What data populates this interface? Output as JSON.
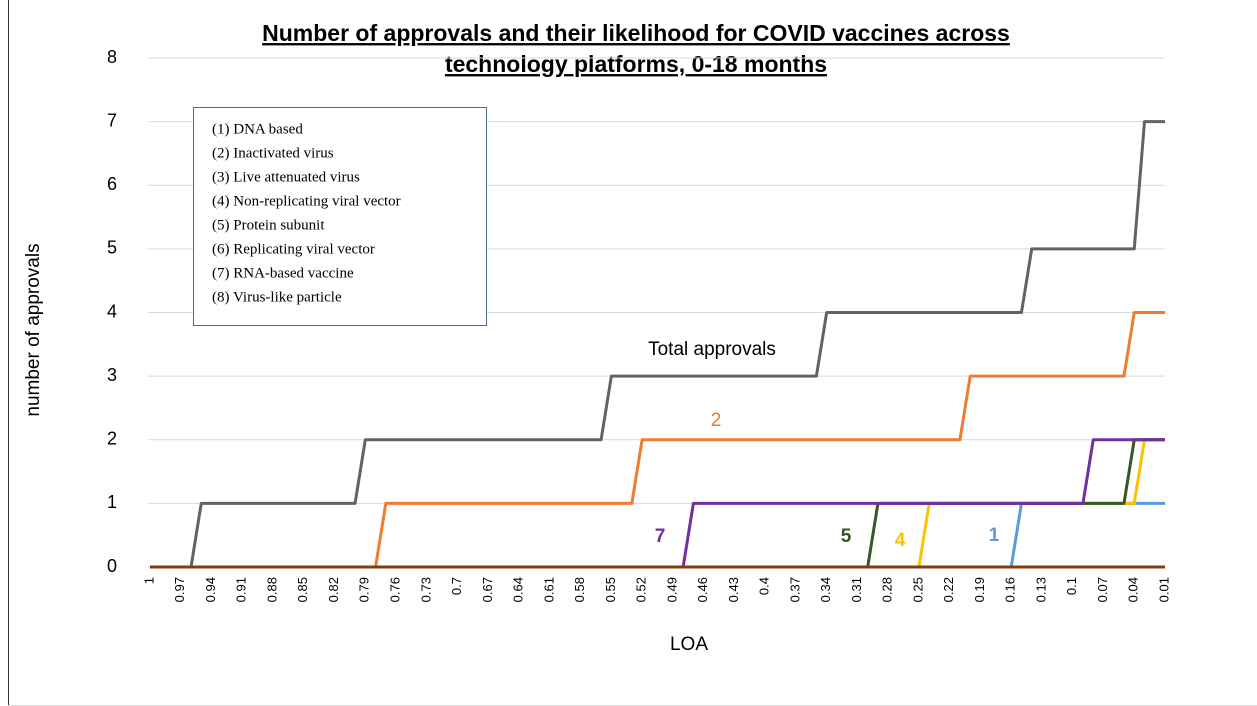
{
  "chart_data": {
    "type": "line",
    "title": [
      "Number of approvals and their likelihood for COVID vaccines across",
      "technology platforms, 0-18 months"
    ],
    "x_label": "LOA",
    "y_label": "number of approvals",
    "legend_notes": [
      "(1) DNA based",
      "(2) Inactivated virus",
      "(3) Live attenuated virus",
      "(4) Non-replicating viral vector",
      "(5) Protein subunit",
      "(6) Replicating viral vector",
      "(7) RNA-based vaccine",
      "(8) Virus-like particle"
    ],
    "ylim": [
      0,
      8
    ],
    "yticks": [
      0,
      1,
      2,
      3,
      4,
      5,
      6,
      7,
      8
    ],
    "grid": true,
    "categories": [
      "1",
      null,
      null,
      "0.97",
      null,
      null,
      "0.94",
      null,
      null,
      "0.91",
      null,
      null,
      "0.88",
      null,
      null,
      "0.85",
      null,
      null,
      "0.82",
      null,
      null,
      "0.79",
      null,
      null,
      "0.76",
      null,
      null,
      "0.73",
      null,
      null,
      "0.7",
      null,
      null,
      "0.67",
      null,
      null,
      "0.64",
      null,
      null,
      "0.61",
      null,
      null,
      "0.58",
      null,
      null,
      "0.55",
      null,
      null,
      "0.52",
      null,
      null,
      "0.49",
      null,
      null,
      "0.46",
      null,
      null,
      "0.43",
      null,
      null,
      "0.4",
      null,
      null,
      "0.37",
      null,
      null,
      "0.34",
      null,
      null,
      "0.31",
      null,
      null,
      "0.28",
      null,
      null,
      "0.25",
      null,
      null,
      "0.22",
      null,
      null,
      "0.19",
      null,
      null,
      "0.16",
      null,
      null,
      "0.13",
      null,
      null,
      "0.1",
      null,
      null,
      "0.07",
      null,
      null,
      "0.04",
      null,
      null,
      "0.01"
    ],
    "series": [
      {
        "name": "1",
        "color": "#5b9bd5",
        "values": [
          0,
          0,
          0,
          0,
          0,
          0,
          0,
          0,
          0,
          0,
          0,
          0,
          0,
          0,
          0,
          0,
          0,
          0,
          0,
          0,
          0,
          0,
          0,
          0,
          0,
          0,
          0,
          0,
          0,
          0,
          0,
          0,
          0,
          0,
          0,
          0,
          0,
          0,
          0,
          0,
          0,
          0,
          0,
          0,
          0,
          0,
          0,
          0,
          0,
          0,
          0,
          0,
          0,
          0,
          0,
          0,
          0,
          0,
          0,
          0,
          0,
          0,
          0,
          0,
          0,
          0,
          0,
          0,
          0,
          0,
          0,
          0,
          0,
          0,
          0,
          0,
          0,
          0,
          0,
          0,
          0,
          0,
          0,
          0,
          0,
          1,
          1,
          1,
          1,
          1,
          1,
          1,
          1,
          1,
          1,
          1,
          1,
          1,
          1,
          1
        ]
      },
      {
        "name": "4",
        "color": "#ffc000",
        "values": [
          0,
          0,
          0,
          0,
          0,
          0,
          0,
          0,
          0,
          0,
          0,
          0,
          0,
          0,
          0,
          0,
          0,
          0,
          0,
          0,
          0,
          0,
          0,
          0,
          0,
          0,
          0,
          0,
          0,
          0,
          0,
          0,
          0,
          0,
          0,
          0,
          0,
          0,
          0,
          0,
          0,
          0,
          0,
          0,
          0,
          0,
          0,
          0,
          0,
          0,
          0,
          0,
          0,
          0,
          0,
          0,
          0,
          0,
          0,
          0,
          0,
          0,
          0,
          0,
          0,
          0,
          0,
          0,
          0,
          0,
          0,
          0,
          0,
          0,
          0,
          0,
          1,
          1,
          1,
          1,
          1,
          1,
          1,
          1,
          1,
          1,
          1,
          1,
          1,
          1,
          1,
          1,
          1,
          1,
          1,
          1,
          1,
          2,
          2,
          2
        ]
      },
      {
        "name": "5",
        "color": "#375623",
        "values": [
          0,
          0,
          0,
          0,
          0,
          0,
          0,
          0,
          0,
          0,
          0,
          0,
          0,
          0,
          0,
          0,
          0,
          0,
          0,
          0,
          0,
          0,
          0,
          0,
          0,
          0,
          0,
          0,
          0,
          0,
          0,
          0,
          0,
          0,
          0,
          0,
          0,
          0,
          0,
          0,
          0,
          0,
          0,
          0,
          0,
          0,
          0,
          0,
          0,
          0,
          0,
          0,
          0,
          0,
          0,
          0,
          0,
          0,
          0,
          0,
          0,
          0,
          0,
          0,
          0,
          0,
          0,
          0,
          0,
          0,
          0,
          1,
          1,
          1,
          1,
          1,
          1,
          1,
          1,
          1,
          1,
          1,
          1,
          1,
          1,
          1,
          1,
          1,
          1,
          1,
          1,
          1,
          1,
          1,
          1,
          1,
          2,
          2,
          2,
          2
        ]
      },
      {
        "name": "7",
        "color": "#7030a0",
        "values": [
          0,
          0,
          0,
          0,
          0,
          0,
          0,
          0,
          0,
          0,
          0,
          0,
          0,
          0,
          0,
          0,
          0,
          0,
          0,
          0,
          0,
          0,
          0,
          0,
          0,
          0,
          0,
          0,
          0,
          0,
          0,
          0,
          0,
          0,
          0,
          0,
          0,
          0,
          0,
          0,
          0,
          0,
          0,
          0,
          0,
          0,
          0,
          0,
          0,
          0,
          0,
          0,
          0,
          1,
          1,
          1,
          1,
          1,
          1,
          1,
          1,
          1,
          1,
          1,
          1,
          1,
          1,
          1,
          1,
          1,
          1,
          1,
          1,
          1,
          1,
          1,
          1,
          1,
          1,
          1,
          1,
          1,
          1,
          1,
          1,
          1,
          1,
          1,
          1,
          1,
          1,
          1,
          2,
          2,
          2,
          2,
          2,
          2,
          2,
          2
        ]
      },
      {
        "name": "2",
        "color": "#ed7d31",
        "values": [
          0,
          0,
          0,
          0,
          0,
          0,
          0,
          0,
          0,
          0,
          0,
          0,
          0,
          0,
          0,
          0,
          0,
          0,
          0,
          0,
          0,
          0,
          0,
          1,
          1,
          1,
          1,
          1,
          1,
          1,
          1,
          1,
          1,
          1,
          1,
          1,
          1,
          1,
          1,
          1,
          1,
          1,
          1,
          1,
          1,
          1,
          1,
          1,
          2,
          2,
          2,
          2,
          2,
          2,
          2,
          2,
          2,
          2,
          2,
          2,
          2,
          2,
          2,
          2,
          2,
          2,
          2,
          2,
          2,
          2,
          2,
          2,
          2,
          2,
          2,
          2,
          2,
          2,
          2,
          2,
          3,
          3,
          3,
          3,
          3,
          3,
          3,
          3,
          3,
          3,
          3,
          3,
          3,
          3,
          3,
          3,
          4,
          4,
          4,
          4
        ]
      },
      {
        "name": "Total approvals",
        "color": "#636363",
        "values": [
          0,
          0,
          0,
          0,
          0,
          1,
          1,
          1,
          1,
          1,
          1,
          1,
          1,
          1,
          1,
          1,
          1,
          1,
          1,
          1,
          1,
          2,
          2,
          2,
          2,
          2,
          2,
          2,
          2,
          2,
          2,
          2,
          2,
          2,
          2,
          2,
          2,
          2,
          2,
          2,
          2,
          2,
          2,
          2,
          2,
          3,
          3,
          3,
          3,
          3,
          3,
          3,
          3,
          3,
          3,
          3,
          3,
          3,
          3,
          3,
          3,
          3,
          3,
          3,
          3,
          3,
          4,
          4,
          4,
          4,
          4,
          4,
          4,
          4,
          4,
          4,
          4,
          4,
          4,
          4,
          4,
          4,
          4,
          4,
          4,
          4,
          5,
          5,
          5,
          5,
          5,
          5,
          5,
          5,
          5,
          5,
          5,
          7,
          7,
          7
        ]
      },
      {
        "color": "#843c0c",
        "values": [
          0,
          0,
          0,
          0,
          0,
          0,
          0,
          0,
          0,
          0,
          0,
          0,
          0,
          0,
          0,
          0,
          0,
          0,
          0,
          0,
          0,
          0,
          0,
          0,
          0,
          0,
          0,
          0,
          0,
          0,
          0,
          0,
          0,
          0,
          0,
          0,
          0,
          0,
          0,
          0,
          0,
          0,
          0,
          0,
          0,
          0,
          0,
          0,
          0,
          0,
          0,
          0,
          0,
          0,
          0,
          0,
          0,
          0,
          0,
          0,
          0,
          0,
          0,
          0,
          0,
          0,
          0,
          0,
          0,
          0,
          0,
          0,
          0,
          0,
          0,
          0,
          0,
          0,
          0,
          0,
          0,
          0,
          0,
          0,
          0,
          0,
          0,
          0,
          0,
          0,
          0,
          0,
          0,
          0,
          0,
          0,
          0,
          0,
          0,
          0
        ]
      }
    ]
  }
}
